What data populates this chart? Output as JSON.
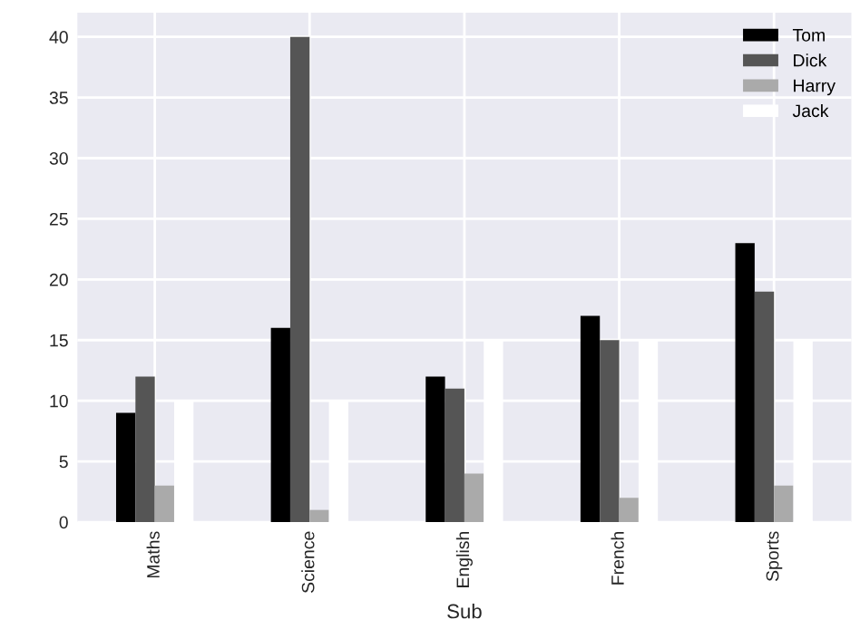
{
  "chart_data": {
    "type": "bar",
    "xlabel": "Sub",
    "categories": [
      "Maths",
      "Science",
      "English",
      "French",
      "Sports"
    ],
    "series": [
      {
        "name": "Tom",
        "color": "#000000",
        "values": [
          9,
          16,
          12,
          17,
          23
        ]
      },
      {
        "name": "Dick",
        "color": "#555555",
        "values": [
          12,
          40,
          11,
          15,
          19
        ]
      },
      {
        "name": "Harry",
        "color": "#aaaaaa",
        "values": [
          3,
          1,
          4,
          2,
          3
        ]
      },
      {
        "name": "Jack",
        "color": "#ffffff",
        "values": [
          10,
          10,
          15,
          15,
          15
        ]
      }
    ],
    "ylim": [
      0,
      42
    ],
    "yticks": [
      0,
      5,
      10,
      15,
      20,
      25,
      30,
      35,
      40
    ],
    "grid": true,
    "legend": "top right"
  }
}
